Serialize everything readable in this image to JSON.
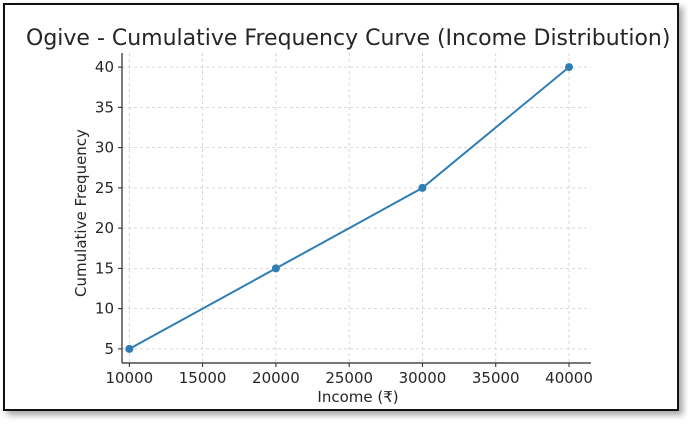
{
  "chart_data": {
    "type": "line",
    "title": "Ogive - Cumulative Frequency Curve (Income Distribution)",
    "xlabel": "Income (₹)",
    "ylabel": "Cumulative Frequency",
    "x": [
      10000,
      20000,
      30000,
      40000
    ],
    "series": [
      {
        "values": [
          5,
          15,
          25,
          40
        ]
      }
    ],
    "xticks": [
      10000,
      15000,
      20000,
      25000,
      30000,
      35000,
      40000
    ],
    "yticks": [
      5,
      10,
      15,
      20,
      25,
      30,
      35,
      40
    ],
    "xlim": [
      9500,
      41500
    ],
    "ylim": [
      3.25,
      41.75
    ],
    "grid": true,
    "line_color": "#2e7db5",
    "marker": "circle"
  }
}
